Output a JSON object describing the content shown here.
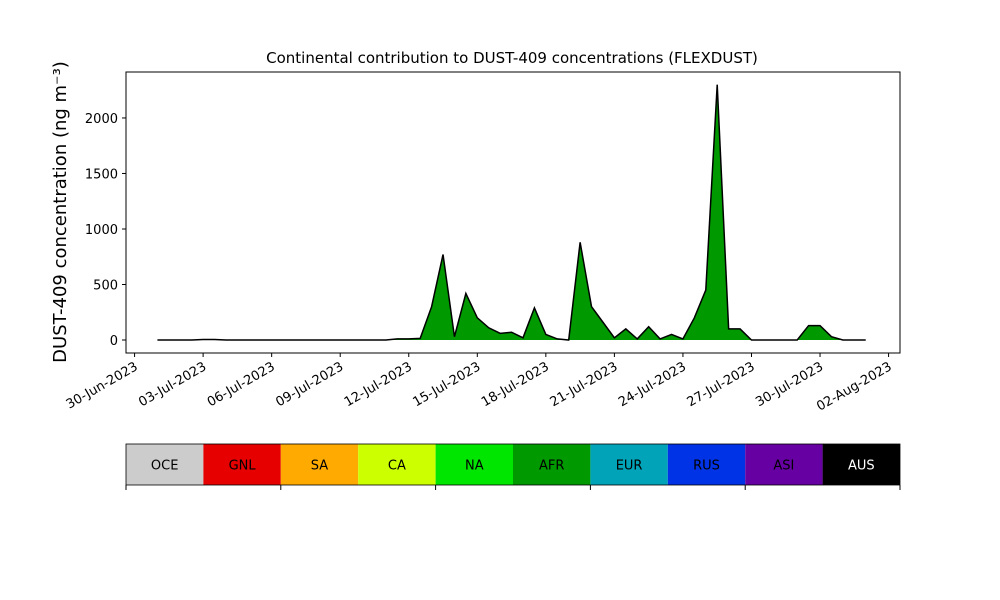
{
  "chart_data": {
    "type": "area",
    "title": "Continental contribution to DUST-409 concentrations (FLEXDUST)",
    "y_label": "DUST-409 concentration (ng m⁻³)",
    "xlim": [
      "2023-06-29 15:00",
      "2023-08-02 12:00"
    ],
    "xticks": [
      {
        "value": "2023-06-30",
        "label": "30-Jun-2023"
      },
      {
        "value": "2023-07-03",
        "label": "03-Jul-2023"
      },
      {
        "value": "2023-07-06",
        "label": "06-Jul-2023"
      },
      {
        "value": "2023-07-09",
        "label": "09-Jul-2023"
      },
      {
        "value": "2023-07-12",
        "label": "12-Jul-2023"
      },
      {
        "value": "2023-07-15",
        "label": "15-Jul-2023"
      },
      {
        "value": "2023-07-18",
        "label": "18-Jul-2023"
      },
      {
        "value": "2023-07-21",
        "label": "21-Jul-2023"
      },
      {
        "value": "2023-07-24",
        "label": "24-Jul-2023"
      },
      {
        "value": "2023-07-27",
        "label": "27-Jul-2023"
      },
      {
        "value": "2023-07-30",
        "label": "30-Jul-2023"
      },
      {
        "value": "2023-08-02",
        "label": "02-Aug-2023"
      }
    ],
    "ylim": [
      -117,
      2414
    ],
    "yticks": [
      0,
      500,
      1000,
      1500,
      2000
    ],
    "x": [
      "2023-07-01 00:00",
      "2023-07-01 12:00",
      "2023-07-02 00:00",
      "2023-07-02 12:00",
      "2023-07-03 00:00",
      "2023-07-03 12:00",
      "2023-07-04 00:00",
      "2023-07-04 12:00",
      "2023-07-05 00:00",
      "2023-07-05 12:00",
      "2023-07-06 00:00",
      "2023-07-06 12:00",
      "2023-07-07 00:00",
      "2023-07-07 12:00",
      "2023-07-08 00:00",
      "2023-07-08 12:00",
      "2023-07-09 00:00",
      "2023-07-09 12:00",
      "2023-07-10 00:00",
      "2023-07-10 12:00",
      "2023-07-11 00:00",
      "2023-07-11 12:00",
      "2023-07-12 00:00",
      "2023-07-12 12:00",
      "2023-07-13 00:00",
      "2023-07-13 12:00",
      "2023-07-14 00:00",
      "2023-07-14 12:00",
      "2023-07-15 00:00",
      "2023-07-15 12:00",
      "2023-07-16 00:00",
      "2023-07-16 12:00",
      "2023-07-17 00:00",
      "2023-07-17 12:00",
      "2023-07-18 00:00",
      "2023-07-18 12:00",
      "2023-07-19 00:00",
      "2023-07-19 12:00",
      "2023-07-20 00:00",
      "2023-07-20 12:00",
      "2023-07-21 00:00",
      "2023-07-21 12:00",
      "2023-07-22 00:00",
      "2023-07-22 12:00",
      "2023-07-23 00:00",
      "2023-07-23 12:00",
      "2023-07-24 00:00",
      "2023-07-24 12:00",
      "2023-07-25 00:00",
      "2023-07-25 12:00",
      "2023-07-26 00:00",
      "2023-07-26 12:00",
      "2023-07-27 00:00",
      "2023-07-27 12:00",
      "2023-07-28 00:00",
      "2023-07-28 12:00",
      "2023-07-29 00:00",
      "2023-07-29 12:00",
      "2023-07-30 00:00",
      "2023-07-30 12:00",
      "2023-07-31 00:00",
      "2023-07-31 12:00",
      "2023-08-01 00:00"
    ],
    "series": [
      {
        "name": "AFR",
        "color": "#009900",
        "values": [
          0,
          0,
          0,
          0,
          5,
          5,
          0,
          0,
          0,
          0,
          0,
          0,
          0,
          0,
          0,
          0,
          0,
          0,
          0,
          0,
          0,
          10,
          10,
          15,
          300,
          770,
          30,
          420,
          200,
          110,
          60,
          70,
          20,
          290,
          50,
          10,
          0,
          880,
          300,
          160,
          20,
          100,
          10,
          120,
          10,
          50,
          10,
          200,
          450,
          2300,
          100,
          100,
          0,
          0,
          0,
          0,
          0,
          130,
          130,
          30,
          0,
          0,
          0
        ]
      }
    ],
    "colorbar": {
      "categories": [
        "OCE",
        "GNL",
        "SA",
        "CA",
        "NA",
        "AFR",
        "EUR",
        "RUS",
        "ASI",
        "AUS"
      ],
      "colors": [
        "#cccccc",
        "#e60000",
        "#ffaa00",
        "#ccff00",
        "#00e600",
        "#009900",
        "#00a3b8",
        "#0033e6",
        "#6600a3",
        "#000000"
      ],
      "text_colors": [
        "#000000",
        "#000000",
        "#000000",
        "#000000",
        "#000000",
        "#000000",
        "#000000",
        "#000000",
        "#000000",
        "#ffffff"
      ]
    }
  }
}
